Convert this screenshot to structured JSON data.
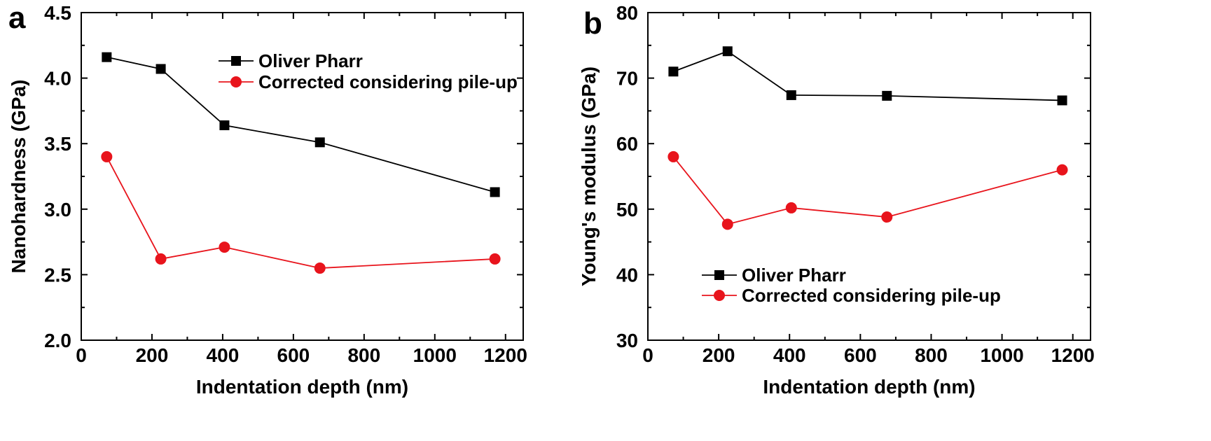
{
  "chart_data": [
    {
      "type": "line",
      "panel_label": "a",
      "xlabel": "Indentation depth (nm)",
      "ylabel": "Nanohardness (GPa)",
      "xlim": [
        0,
        1250
      ],
      "ylim": [
        2.0,
        4.5
      ],
      "xticks": [
        0,
        200,
        400,
        600,
        800,
        1000,
        1200
      ],
      "xtick_labels": [
        "0",
        "200",
        "400",
        "600",
        "800",
        "1000",
        "1200"
      ],
      "yticks": [
        2.0,
        2.5,
        3.0,
        3.5,
        4.0,
        4.5
      ],
      "ytick_labels": [
        "2.0",
        "2.5",
        "3.0",
        "3.5",
        "4.0",
        "4.5"
      ],
      "grid": false,
      "legend_position": "top-right",
      "series": [
        {
          "name": "Oliver Pharr",
          "color": "#000000",
          "marker": "square",
          "x": [
            72,
            225,
            405,
            675,
            1170
          ],
          "y": [
            4.16,
            4.07,
            3.64,
            3.51,
            3.13
          ]
        },
        {
          "name": "Corrected considering pile-up",
          "color": "#e8141c",
          "marker": "circle",
          "x": [
            72,
            225,
            405,
            675,
            1170
          ],
          "y": [
            3.4,
            2.62,
            2.71,
            2.55,
            2.62
          ]
        }
      ]
    },
    {
      "type": "line",
      "panel_label": "b",
      "xlabel": "Indentation depth (nm)",
      "ylabel": "Young's modulus (GPa)",
      "xlim": [
        0,
        1250
      ],
      "ylim": [
        30,
        80
      ],
      "xticks": [
        0,
        200,
        400,
        600,
        800,
        1000,
        1200
      ],
      "xtick_labels": [
        "0",
        "200",
        "400",
        "600",
        "800",
        "1000",
        "1200"
      ],
      "yticks": [
        30,
        40,
        50,
        60,
        70,
        80
      ],
      "ytick_labels": [
        "30",
        "40",
        "50",
        "60",
        "70",
        "80"
      ],
      "grid": false,
      "legend_position": "bottom-left",
      "series": [
        {
          "name": "Oliver Pharr",
          "color": "#000000",
          "marker": "square",
          "x": [
            72,
            225,
            405,
            675,
            1170
          ],
          "y": [
            71.0,
            74.1,
            67.4,
            67.3,
            66.6
          ]
        },
        {
          "name": "Corrected considering pile-up",
          "color": "#e8141c",
          "marker": "circle",
          "x": [
            72,
            225,
            405,
            675,
            1170
          ],
          "y": [
            58.0,
            47.7,
            50.2,
            48.8,
            56.0
          ]
        }
      ]
    }
  ]
}
